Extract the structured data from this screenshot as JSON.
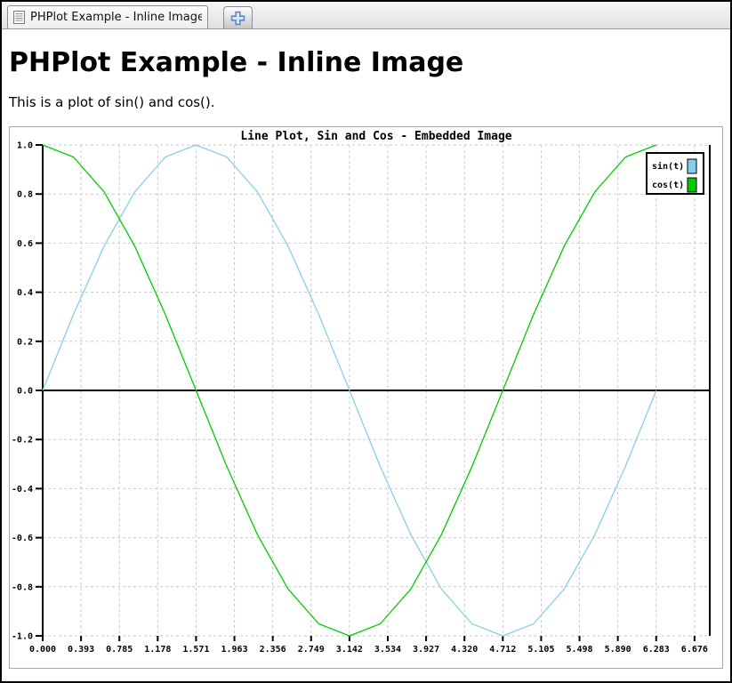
{
  "window": {
    "tab": {
      "title": "PHPlot Example - Inline Image",
      "icon": "document-icon"
    },
    "new_tab": {
      "icon": "plus-icon",
      "color": "#5b87c5"
    }
  },
  "page": {
    "heading": "PHPlot Example - Inline Image",
    "intro": "This is a plot of sin() and cos()."
  },
  "chart_data": {
    "type": "line",
    "title": "Line Plot, Sin and Cos - Embedded Image",
    "xlabel": "",
    "ylabel": "",
    "xlim": [
      0,
      6.832
    ],
    "ylim": [
      -1,
      1
    ],
    "grid": true,
    "grid_style": "dashed",
    "legend_position": "top-right",
    "x": [
      0.0,
      0.3142,
      0.6283,
      0.9425,
      1.2566,
      1.5708,
      1.885,
      2.1991,
      2.5133,
      2.8274,
      3.1416,
      3.4558,
      3.7699,
      4.0841,
      4.3982,
      4.7124,
      5.0265,
      5.3407,
      5.6549,
      5.969,
      6.2832
    ],
    "series": [
      {
        "name": "sin(t)",
        "color": "#87CEEB",
        "values": [
          0.0,
          0.309,
          0.5878,
          0.809,
          0.9511,
          1.0,
          0.9511,
          0.809,
          0.5878,
          0.309,
          0.0,
          -0.309,
          -0.5878,
          -0.809,
          -0.9511,
          -1.0,
          -0.9511,
          -0.809,
          -0.5878,
          -0.309,
          0.0
        ]
      },
      {
        "name": "cos(t)",
        "color": "#00CC00",
        "values": [
          1.0,
          0.9511,
          0.809,
          0.5878,
          0.309,
          0.0,
          -0.309,
          -0.5878,
          -0.809,
          -0.9511,
          -1.0,
          -0.9511,
          -0.809,
          -0.5878,
          -0.309,
          0.0,
          0.309,
          0.5878,
          0.809,
          0.9511,
          1.0
        ]
      }
    ],
    "x_ticks": {
      "values": [
        0.0,
        0.3927,
        0.7854,
        1.1781,
        1.5708,
        1.9635,
        2.3562,
        2.7489,
        3.1416,
        3.5343,
        3.927,
        4.3197,
        4.7124,
        5.1051,
        5.4978,
        5.8905,
        6.2832,
        6.6759
      ],
      "labels": [
        "0.000",
        "0.393",
        "0.785",
        "1.178",
        "1.571",
        "1.963",
        "2.356",
        "2.749",
        "3.142",
        "3.534",
        "3.927",
        "4.320",
        "4.712",
        "5.105",
        "5.498",
        "5.890",
        "6.283",
        "6.676"
      ]
    },
    "y_ticks": {
      "values": [
        1.0,
        0.8,
        0.6,
        0.4,
        0.2,
        0.0,
        -0.2,
        -0.4,
        -0.6,
        -0.8,
        -1.0
      ],
      "labels": [
        "1.0",
        "0.8",
        "0.6",
        "0.4",
        "0.2",
        "0.0",
        "-0.2",
        "-0.4",
        "-0.6",
        "-0.8",
        "-1.0"
      ]
    },
    "colors": {
      "grid": "#c9c9c9",
      "axis": "#000000",
      "background": "#ffffff",
      "chart_border": "#a9a9a9"
    }
  }
}
